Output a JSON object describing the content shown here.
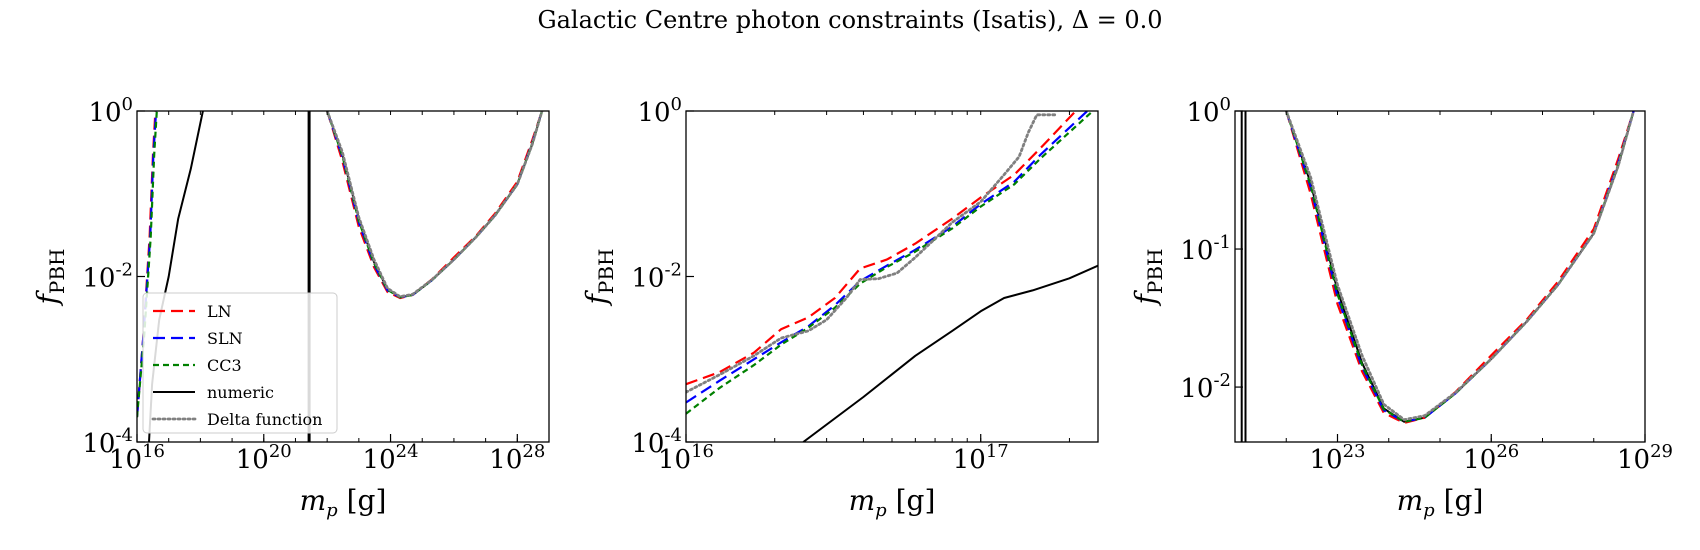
{
  "figure": {
    "suptitle": "Galactic Centre photon constraints (Isatis), Δ = 0.0"
  },
  "legend": {
    "entries": [
      {
        "label": "LN",
        "color": "#ff0000",
        "style": "dashed-long"
      },
      {
        "label": "SLN",
        "color": "#0000ff",
        "style": "dashed-long"
      },
      {
        "label": "CC3",
        "color": "#008000",
        "style": "dashed"
      },
      {
        "label": "numeric",
        "color": "#000000",
        "style": "solid"
      },
      {
        "label": "Delta function",
        "color": "#808080",
        "style": "dotted"
      }
    ],
    "placement": "lower-left of first panel"
  },
  "chart_data": [
    {
      "type": "line",
      "xlabel": "m_p [g]",
      "ylabel": "f_PBH",
      "xscale": "log",
      "yscale": "log",
      "xlim": [
        1e+16,
        1e+29
      ],
      "ylim": [
        0.0001,
        1
      ],
      "xticks": [
        {
          "label": "10",
          "exp": "16"
        },
        {
          "label": "10",
          "exp": "20"
        },
        {
          "label": "10",
          "exp": "24"
        },
        {
          "label": "10",
          "exp": "28"
        }
      ],
      "yticks": [
        {
          "label": "10",
          "exp": "0"
        },
        {
          "label": "10",
          "exp": "-2"
        },
        {
          "label": "10",
          "exp": "-4"
        }
      ],
      "series": [
        {
          "name": "LN",
          "x": [
            1e+16,
            1.6e+16,
            2.5e+16,
            3.2e+16,
            3.8e+16
          ],
          "y": [
            0.0002,
            0.002,
            0.03,
            0.3,
            1
          ]
        },
        {
          "name": "SLN",
          "x": [
            1e+16,
            1.6e+16,
            2.6e+16,
            3.3e+16,
            4e+16
          ],
          "y": [
            0.0002,
            0.002,
            0.03,
            0.3,
            1
          ]
        },
        {
          "name": "CC3",
          "x": [
            1e+16,
            1.7e+16,
            2.7e+16,
            3.5e+16,
            4.2e+16
          ],
          "y": [
            0.0002,
            0.002,
            0.03,
            0.3,
            1
          ]
        },
        {
          "name": "numeric",
          "x": [
            2.4e+16,
            3e+16,
            5e+16,
            1e+17,
            2e+17,
            5e+17,
            1.2e+18
          ],
          "y": [
            0.0001,
            0.0005,
            0.003,
            0.01,
            0.05,
            0.2,
            1
          ]
        },
        {
          "name": "numeric",
          "x": [
            2.6e+21,
            2.6e+21
          ],
          "y": [
            0.0001,
            1
          ]
        },
        {
          "name": "numeric",
          "x": [
            2.8e+21,
            2.8e+21
          ],
          "y": [
            0.0001,
            1
          ]
        },
        {
          "name": "numeric",
          "x": [
            1e+22,
            3e+22,
            1e+23,
            3e+23,
            8e+23,
            2e+24,
            5e+24,
            2e+25,
            1e+26,
            5e+26,
            2e+27,
            1e+28,
            3e+28,
            6e+28
          ],
          "y": [
            1,
            0.3,
            0.05,
            0.015,
            0.007,
            0.0056,
            0.006,
            0.009,
            0.016,
            0.03,
            0.055,
            0.13,
            0.4,
            1
          ]
        },
        {
          "name": "LN",
          "x": [
            1e+22,
            3e+22,
            1e+23,
            3e+23,
            8e+23,
            2e+24,
            5e+24,
            2e+25,
            1e+26,
            5e+26,
            2e+27,
            1e+28,
            3e+28,
            6e+28
          ],
          "y": [
            1,
            0.25,
            0.04,
            0.013,
            0.0065,
            0.0055,
            0.006,
            0.0092,
            0.017,
            0.031,
            0.058,
            0.14,
            0.45,
            1
          ]
        },
        {
          "name": "SLN",
          "x": [
            1e+22,
            3e+22,
            1e+23,
            3e+23,
            8e+23,
            2e+24,
            5e+24,
            2e+25,
            1e+26,
            5e+26,
            2e+27,
            1e+28,
            3e+28,
            6e+28
          ],
          "y": [
            1,
            0.28,
            0.045,
            0.014,
            0.0068,
            0.0056,
            0.006,
            0.009,
            0.016,
            0.03,
            0.055,
            0.13,
            0.42,
            1
          ]
        },
        {
          "name": "CC3",
          "x": [
            1e+22,
            3e+22,
            1e+23,
            3e+23,
            8e+23,
            2e+24,
            5e+24,
            2e+25,
            1e+26,
            5e+26,
            2e+27,
            1e+28,
            3e+28,
            6e+28
          ],
          "y": [
            1,
            0.29,
            0.047,
            0.0145,
            0.0069,
            0.0056,
            0.006,
            0.009,
            0.016,
            0.03,
            0.055,
            0.13,
            0.41,
            1
          ]
        },
        {
          "name": "Delta function",
          "x": [
            1e+22,
            3e+22,
            1e+23,
            3e+23,
            8e+23,
            2e+24,
            5e+24,
            2e+25,
            1e+26,
            5e+26,
            2e+27,
            1e+28,
            3e+28,
            6e+28
          ],
          "y": [
            1,
            0.32,
            0.052,
            0.016,
            0.0072,
            0.0057,
            0.0061,
            0.0091,
            0.016,
            0.03,
            0.055,
            0.13,
            0.4,
            1
          ]
        }
      ]
    },
    {
      "type": "line",
      "xlabel": "m_p [g]",
      "ylabel": "f_PBH",
      "xscale": "log",
      "yscale": "log",
      "xlim": [
        1e+16,
        2.5e+17
      ],
      "ylim": [
        0.0001,
        1
      ],
      "xticks": [
        {
          "label": "10",
          "exp": "16"
        },
        {
          "label": "10",
          "exp": "17"
        }
      ],
      "yticks": [
        {
          "label": "10",
          "exp": "0"
        },
        {
          "label": "10",
          "exp": "-2"
        },
        {
          "label": "10",
          "exp": "-4"
        }
      ],
      "series": [
        {
          "name": "LN",
          "x": [
            1e+16,
            1.3e+16,
            1.7e+16,
            2.1e+16,
            2.6e+16,
            3.2e+16,
            3.9e+16,
            4.8e+16,
            6e+16,
            8e+16,
            1e+17,
            1.3e+17,
            1.6e+17,
            2.1e+17
          ],
          "y": [
            0.0005,
            0.0007,
            0.0012,
            0.0023,
            0.0032,
            0.0055,
            0.0125,
            0.016,
            0.025,
            0.05,
            0.09,
            0.17,
            0.36,
            1
          ]
        },
        {
          "name": "SLN",
          "x": [
            1e+16,
            1.3e+16,
            1.7e+16,
            2.1e+16,
            2.6e+16,
            3.2e+16,
            3.9e+16,
            4.8e+16,
            6e+16,
            8e+16,
            1e+17,
            1.3e+17,
            1.6e+17,
            2.3e+17
          ],
          "y": [
            0.0003,
            0.00055,
            0.001,
            0.0016,
            0.0025,
            0.0045,
            0.0088,
            0.0135,
            0.021,
            0.04,
            0.075,
            0.14,
            0.3,
            1
          ]
        },
        {
          "name": "CC3",
          "x": [
            1e+16,
            1.3e+16,
            1.7e+16,
            2.1e+16,
            2.6e+16,
            3.2e+16,
            3.9e+16,
            4.8e+16,
            6e+16,
            8e+16,
            1e+17,
            1.3e+17,
            1.6e+17,
            2.4e+17
          ],
          "y": [
            0.00022,
            0.00045,
            0.00085,
            0.0015,
            0.0024,
            0.0042,
            0.0082,
            0.013,
            0.02,
            0.038,
            0.07,
            0.13,
            0.27,
            1
          ]
        },
        {
          "name": "numeric",
          "x": [
            2.5e+16,
            4e+16,
            6e+16,
            8e+16,
            1e+17,
            1.2e+17,
            1.5e+17,
            2e+17,
            2.5e+17
          ],
          "y": [
            0.0001,
            0.00035,
            0.0011,
            0.0022,
            0.0038,
            0.0055,
            0.0068,
            0.0095,
            0.0135
          ]
        },
        {
          "name": "Delta function",
          "x": [
            1e+16,
            1.3e+16,
            1.7e+16,
            2.1e+16,
            2.6e+16,
            3e+16,
            3.5e+16,
            3.9e+16,
            4.5e+16,
            5.2e+16,
            6e+16,
            8e+16,
            1e+17,
            1.2e+17,
            1.35e+17,
            1.45e+17,
            1.55e+17,
            1.8e+17
          ],
          "y": [
            0.0004,
            0.00065,
            0.0011,
            0.0018,
            0.0022,
            0.003,
            0.0055,
            0.0092,
            0.0094,
            0.011,
            0.017,
            0.045,
            0.08,
            0.17,
            0.28,
            0.55,
            0.9,
            0.9
          ]
        }
      ]
    },
    {
      "type": "line",
      "xlabel": "m_p [g]",
      "ylabel": "f_PBH",
      "xscale": "log",
      "yscale": "log",
      "xlim": [
        1e+21,
        1e+29
      ],
      "ylim": [
        0.004,
        1
      ],
      "xticks": [
        {
          "label": "10",
          "exp": "23"
        },
        {
          "label": "10",
          "exp": "26"
        },
        {
          "label": "10",
          "exp": "29"
        }
      ],
      "yticks": [
        {
          "label": "10",
          "exp": "0"
        },
        {
          "label": "10",
          "exp": "-1"
        },
        {
          "label": "10",
          "exp": "-2"
        }
      ],
      "series": [
        {
          "name": "numeric",
          "x": [
            1.35e+21,
            1.35e+21
          ],
          "y": [
            0.004,
            1
          ]
        },
        {
          "name": "numeric",
          "x": [
            1.6e+21,
            1.6e+21
          ],
          "y": [
            0.004,
            1
          ]
        },
        {
          "name": "numeric",
          "x": [
            1e+22,
            3e+22,
            1e+23,
            3e+23,
            8e+23,
            2e+24,
            5e+24,
            2e+25,
            1e+26,
            5e+26,
            2e+27,
            1e+28,
            3e+28,
            6e+28
          ],
          "y": [
            1,
            0.3,
            0.05,
            0.015,
            0.007,
            0.0056,
            0.006,
            0.009,
            0.016,
            0.03,
            0.055,
            0.13,
            0.4,
            1
          ]
        },
        {
          "name": "LN",
          "x": [
            1e+22,
            3e+22,
            1e+23,
            3e+23,
            8e+23,
            2e+24,
            5e+24,
            2e+25,
            1e+26,
            5e+26,
            2e+27,
            1e+28,
            3e+28,
            6e+28
          ],
          "y": [
            1,
            0.25,
            0.04,
            0.013,
            0.0065,
            0.0055,
            0.006,
            0.0092,
            0.017,
            0.031,
            0.058,
            0.14,
            0.45,
            1
          ]
        },
        {
          "name": "SLN",
          "x": [
            1e+22,
            3e+22,
            1e+23,
            3e+23,
            8e+23,
            2e+24,
            5e+24,
            2e+25,
            1e+26,
            5e+26,
            2e+27,
            1e+28,
            3e+28,
            6e+28
          ],
          "y": [
            1,
            0.28,
            0.045,
            0.014,
            0.0068,
            0.0056,
            0.006,
            0.009,
            0.016,
            0.03,
            0.055,
            0.13,
            0.42,
            1
          ]
        },
        {
          "name": "CC3",
          "x": [
            1e+22,
            3e+22,
            1e+23,
            3e+23,
            8e+23,
            2e+24,
            5e+24,
            2e+25,
            1e+26,
            5e+26,
            2e+27,
            1e+28,
            3e+28,
            6e+28
          ],
          "y": [
            1,
            0.29,
            0.047,
            0.0145,
            0.0069,
            0.0056,
            0.006,
            0.009,
            0.016,
            0.03,
            0.055,
            0.13,
            0.41,
            1
          ]
        },
        {
          "name": "Delta function",
          "x": [
            1e+22,
            3e+22,
            1e+23,
            3e+23,
            8e+23,
            2e+24,
            5e+24,
            2e+25,
            1e+26,
            5e+26,
            2e+27,
            1e+28,
            3e+28,
            6e+28
          ],
          "y": [
            1,
            0.33,
            0.055,
            0.017,
            0.0075,
            0.0058,
            0.0062,
            0.0091,
            0.016,
            0.03,
            0.055,
            0.13,
            0.4,
            1
          ]
        }
      ]
    }
  ]
}
